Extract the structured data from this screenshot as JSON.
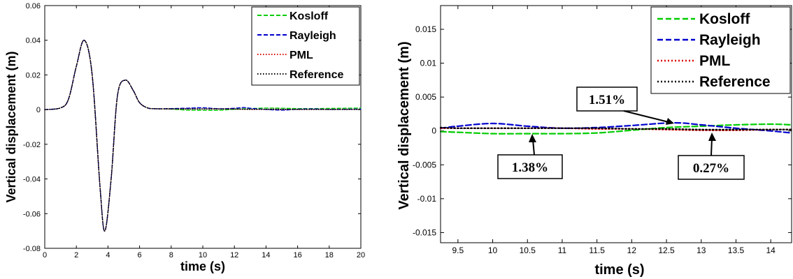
{
  "chart_data": [
    {
      "type": "line",
      "xlabel": "time (s)",
      "ylabel": "Vertical displacement (m)",
      "xlim": [
        0,
        20
      ],
      "ylim": [
        -0.08,
        0.06
      ],
      "xticks": [
        "0",
        "2",
        "4",
        "6",
        "8",
        "10",
        "12",
        "14",
        "16",
        "18",
        "20"
      ],
      "yticks": [
        "-0.08",
        "-0.06",
        "-0.04",
        "-0.02",
        "0",
        "0.02",
        "0.04",
        "0.06"
      ],
      "legend": "top-right",
      "series": [
        {
          "name": "Kosloff",
          "color": "#00cc00",
          "dash": "dashed",
          "x": [
            0,
            1,
            1.5,
            2,
            2.5,
            3,
            3.5,
            3.8,
            4.2,
            4.6,
            5.1,
            5.6,
            6,
            6.5,
            7,
            8,
            9,
            10,
            11,
            12,
            13,
            14,
            15,
            16,
            17,
            18,
            19,
            20
          ],
          "y": [
            0,
            0.001,
            0.006,
            0.025,
            0.04,
            0.02,
            -0.045,
            -0.07,
            -0.04,
            0.008,
            0.017,
            0.011,
            0.004,
            0.001,
            0.0005,
            0.0003,
            -0.0003,
            -0.0004,
            -0.0004,
            0.0002,
            0.0006,
            0.0009,
            0.0008,
            0.0006,
            0.0006,
            0.0007,
            0.0008,
            0.0009
          ]
        },
        {
          "name": "Rayleigh",
          "color": "#0000cc",
          "dash": "dashed",
          "x": [
            0,
            1,
            1.5,
            2,
            2.5,
            3,
            3.5,
            3.8,
            4.2,
            4.6,
            5.1,
            5.6,
            6,
            6.5,
            7,
            8,
            9,
            10,
            11,
            12,
            12.6,
            13,
            14,
            15,
            16,
            17,
            18,
            19,
            20
          ],
          "y": [
            0,
            0.001,
            0.006,
            0.025,
            0.04,
            0.02,
            -0.045,
            -0.07,
            -0.04,
            0.008,
            0.017,
            0.011,
            0.004,
            0.001,
            0.0005,
            0.0006,
            0.0008,
            0.0011,
            0.0005,
            0.0008,
            0.0012,
            0.0008,
            0.0001,
            -0.0003,
            0.0002,
            0.0004,
            0.0001,
            0.0002,
            0.0003
          ]
        },
        {
          "name": "PML",
          "color": "#dd0000",
          "dash": "dotted",
          "x": [
            0,
            1,
            1.5,
            2,
            2.5,
            3,
            3.5,
            3.8,
            4.2,
            4.6,
            5.1,
            5.6,
            6,
            6.5,
            7,
            8,
            9,
            10,
            11,
            12,
            13,
            14,
            15,
            16,
            17,
            18,
            19,
            20
          ],
          "y": [
            0,
            0.001,
            0.006,
            0.025,
            0.04,
            0.02,
            -0.045,
            -0.07,
            -0.04,
            0.008,
            0.017,
            0.011,
            0.004,
            0.001,
            0.0005,
            0.0004,
            0.0004,
            0.0004,
            0.0004,
            0.0003,
            0.0001,
            0.0002,
            0.0002,
            0.0001,
            0.0001,
            0.0001,
            0.0001,
            0.0001
          ]
        },
        {
          "name": "Reference",
          "color": "#000000",
          "dash": "dotted",
          "x": [
            0,
            1,
            1.5,
            2,
            2.5,
            3,
            3.5,
            3.8,
            4.2,
            4.6,
            5.1,
            5.6,
            6,
            6.5,
            7,
            8,
            9,
            10,
            11,
            12,
            13,
            14,
            15,
            16,
            17,
            18,
            19,
            20
          ],
          "y": [
            0,
            0.001,
            0.006,
            0.025,
            0.04,
            0.02,
            -0.045,
            -0.07,
            -0.04,
            0.008,
            0.017,
            0.011,
            0.004,
            0.001,
            0.0005,
            0.0004,
            0.0004,
            0.0004,
            0.0004,
            0.0003,
            0.0002,
            0.0002,
            0.0002,
            0.0001,
            0.0001,
            0.0001,
            0.0001,
            0.0001
          ]
        }
      ]
    },
    {
      "type": "line",
      "xlabel": "time (s)",
      "ylabel": "Vertical displacement (m)",
      "xlim": [
        9.25,
        14.3
      ],
      "ylim": [
        -0.0165,
        0.0185
      ],
      "xticks": [
        "9.5",
        "10",
        "10.5",
        "11",
        "11.5",
        "12",
        "12.5",
        "13",
        "13.5",
        "14"
      ],
      "yticks": [
        "-0.015",
        "-0.01",
        "-0.005",
        "0",
        "0.005",
        "0.01",
        "0.015"
      ],
      "legend": "top-right",
      "annotations": [
        "1.51%",
        "1.38%",
        "0.27%"
      ],
      "series": [
        {
          "name": "Kosloff",
          "color": "#00cc00",
          "dash": "dashed",
          "x": [
            9.25,
            9.5,
            10,
            10.5,
            11,
            11.5,
            12,
            12.5,
            13,
            13.5,
            14,
            14.3
          ],
          "y": [
            -0.0001,
            -0.0002,
            -0.0004,
            -0.0004,
            -0.0004,
            -0.0003,
            0.0001,
            0.0005,
            0.0007,
            0.0009,
            0.001,
            0.0009
          ]
        },
        {
          "name": "Rayleigh",
          "color": "#0000cc",
          "dash": "dashed",
          "x": [
            9.25,
            9.5,
            10,
            10.5,
            11,
            11.5,
            12,
            12.6,
            13,
            13.5,
            14,
            14.3
          ],
          "y": [
            0.0004,
            0.0007,
            0.0011,
            0.0007,
            0.0004,
            0.0005,
            0.0008,
            0.0012,
            0.0009,
            0.0004,
            0.0,
            -0.0003
          ]
        },
        {
          "name": "PML",
          "color": "#dd0000",
          "dash": "dotted",
          "x": [
            9.25,
            9.5,
            10,
            10.5,
            11,
            11.5,
            12,
            12.5,
            13,
            13.5,
            14,
            14.3
          ],
          "y": [
            0.0004,
            0.0004,
            0.0004,
            0.0004,
            0.0004,
            0.0003,
            0.0003,
            0.0002,
            0.0001,
            0.0001,
            0.0002,
            0.0002
          ]
        },
        {
          "name": "Reference",
          "color": "#000000",
          "dash": "dotted",
          "x": [
            9.25,
            9.5,
            10,
            10.5,
            11,
            11.5,
            12,
            12.5,
            13,
            13.5,
            14,
            14.3
          ],
          "y": [
            0.0005,
            0.0004,
            0.0004,
            0.0004,
            0.0004,
            0.0004,
            0.0003,
            0.0003,
            0.0002,
            0.0002,
            0.0002,
            0.0002
          ]
        }
      ]
    }
  ]
}
